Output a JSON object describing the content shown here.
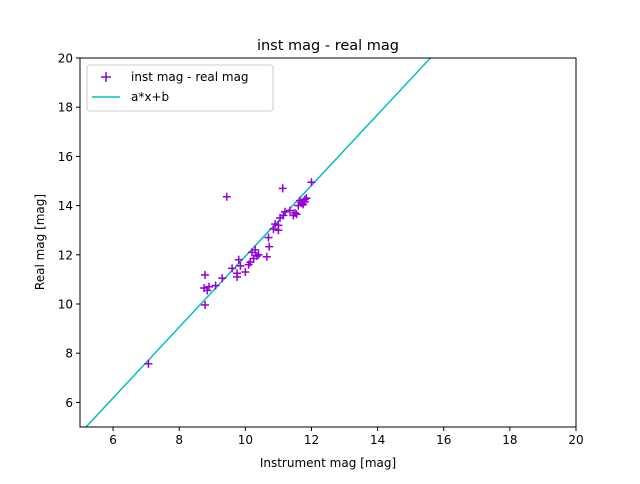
{
  "chart_data": {
    "type": "scatter",
    "title": "inst mag - real mag",
    "xlabel": "Instrument mag [mag]",
    "ylabel": "Real mag [mag]",
    "xlim": [
      5,
      20
    ],
    "ylim": [
      5,
      20
    ],
    "xticks": [
      6,
      8,
      10,
      12,
      14,
      16,
      18,
      20
    ],
    "yticks": [
      6,
      8,
      10,
      12,
      14,
      16,
      18,
      20
    ],
    "grid": false,
    "legend_position": "top-left",
    "series": [
      {
        "name": "inst mag - real mag",
        "kind": "scatter",
        "marker": "+",
        "color": "#9400d3",
        "points": [
          [
            7.07,
            7.57
          ],
          [
            8.78,
            9.96
          ],
          [
            8.78,
            11.18
          ],
          [
            8.75,
            10.65
          ],
          [
            8.85,
            10.55
          ],
          [
            8.9,
            10.7
          ],
          [
            9.1,
            10.75
          ],
          [
            9.3,
            11.05
          ],
          [
            9.6,
            11.45
          ],
          [
            9.75,
            11.1
          ],
          [
            9.75,
            11.25
          ],
          [
            9.85,
            11.55
          ],
          [
            9.8,
            11.8
          ],
          [
            10.0,
            11.3
          ],
          [
            10.1,
            11.6
          ],
          [
            10.15,
            11.7
          ],
          [
            10.2,
            12.1
          ],
          [
            10.3,
            12.2
          ],
          [
            10.35,
            11.95
          ],
          [
            10.25,
            11.85
          ],
          [
            10.4,
            12.0
          ],
          [
            10.65,
            11.92
          ],
          [
            10.72,
            12.33
          ],
          [
            10.7,
            12.7
          ],
          [
            10.85,
            13.05
          ],
          [
            11.0,
            13.0
          ],
          [
            11.0,
            13.2
          ],
          [
            10.9,
            13.25
          ],
          [
            11.05,
            13.5
          ],
          [
            11.15,
            13.6
          ],
          [
            11.2,
            13.75
          ],
          [
            11.35,
            13.8
          ],
          [
            11.45,
            13.6
          ],
          [
            11.5,
            13.7
          ],
          [
            11.55,
            13.65
          ],
          [
            11.6,
            14.0
          ],
          [
            11.7,
            14.1
          ],
          [
            11.65,
            14.2
          ],
          [
            11.75,
            14.05
          ],
          [
            11.8,
            14.15
          ],
          [
            11.85,
            14.3
          ],
          [
            11.8,
            14.25
          ],
          [
            9.44,
            14.36
          ],
          [
            11.13,
            14.7
          ],
          [
            12.0,
            14.95
          ]
        ]
      },
      {
        "name": "a*x+b",
        "kind": "line",
        "color": "#00bfbf",
        "a": 1.44,
        "b": -2.46
      }
    ]
  }
}
